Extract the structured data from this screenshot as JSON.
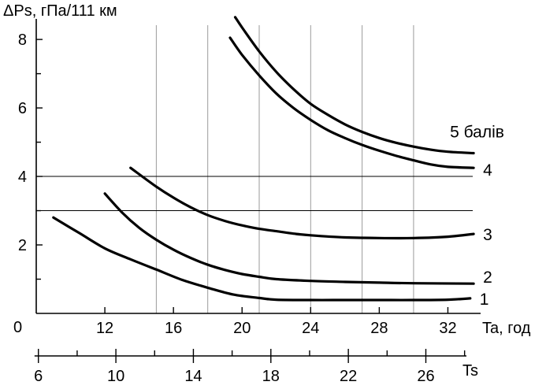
{
  "chart_data": {
    "type": "line",
    "ylabel": "ΔPs, гПа/111 км",
    "xlabel": "Ta, год",
    "x2label": "Ts",
    "origin_label": "0",
    "xlim": [
      8,
      34
    ],
    "ylim": [
      0,
      8.6
    ],
    "x_ticks": [
      12,
      16,
      20,
      24,
      28,
      32
    ],
    "x_minor_ticks": [],
    "y_ticks": [
      2,
      4,
      6,
      8
    ],
    "y_minor_ticks": [
      1,
      3,
      5,
      7
    ],
    "x2_ticks": [
      6,
      10,
      14,
      18,
      22,
      26
    ],
    "x2_minor_ticks": [
      8,
      12,
      16,
      20,
      24,
      28
    ],
    "x2lim": [
      5.8,
      28.2
    ],
    "vertical_grid_x": [
      15,
      18,
      21,
      24,
      27,
      30
    ],
    "horizontal_grid_y": [
      3,
      4
    ],
    "grid": true,
    "series": [
      {
        "name": "1",
        "x": [
          9.0,
          10.5,
          12.0,
          13.5,
          15.0,
          16.5,
          18.0,
          19.5,
          21.0,
          22.0,
          24.0,
          26.0,
          28.0,
          30.0,
          32.0,
          33.3
        ],
        "y": [
          2.8,
          2.35,
          1.9,
          1.58,
          1.28,
          0.98,
          0.75,
          0.55,
          0.45,
          0.4,
          0.39,
          0.39,
          0.39,
          0.39,
          0.4,
          0.44
        ]
      },
      {
        "name": "2",
        "x": [
          12.0,
          13.0,
          14.0,
          15.0,
          16.0,
          17.0,
          18.0,
          19.0,
          20.0,
          21.0,
          22.0,
          24.0,
          26.0,
          28.0,
          30.0,
          33.5
        ],
        "y": [
          3.5,
          2.95,
          2.5,
          2.15,
          1.86,
          1.62,
          1.42,
          1.27,
          1.15,
          1.07,
          1.0,
          0.95,
          0.92,
          0.9,
          0.88,
          0.87
        ]
      },
      {
        "name": "3",
        "x": [
          13.5,
          15.0,
          16.0,
          17.0,
          18.0,
          19.0,
          20.0,
          21.0,
          22.0,
          23.0,
          24.0,
          26.0,
          28.0,
          30.0,
          32.0,
          33.5
        ],
        "y": [
          4.25,
          3.7,
          3.38,
          3.1,
          2.87,
          2.7,
          2.57,
          2.47,
          2.4,
          2.33,
          2.28,
          2.22,
          2.2,
          2.2,
          2.24,
          2.32
        ]
      },
      {
        "name": "4",
        "x": [
          19.3,
          20.0,
          21.0,
          22.0,
          23.0,
          24.0,
          25.0,
          26.0,
          27.0,
          28.0,
          29.0,
          30.0,
          31.0,
          32.0,
          33.5
        ],
        "y": [
          8.05,
          7.55,
          6.95,
          6.42,
          6.0,
          5.65,
          5.35,
          5.12,
          4.92,
          4.75,
          4.6,
          4.47,
          4.35,
          4.28,
          4.25
        ]
      },
      {
        "name": "5 балів",
        "x": [
          19.6,
          20.0,
          21.0,
          22.0,
          23.0,
          24.0,
          25.0,
          26.0,
          27.0,
          28.0,
          29.0,
          30.0,
          31.0,
          32.0,
          33.5
        ],
        "y": [
          8.65,
          8.35,
          7.65,
          7.05,
          6.55,
          6.12,
          5.8,
          5.52,
          5.3,
          5.12,
          4.98,
          4.87,
          4.78,
          4.72,
          4.68
        ]
      }
    ]
  }
}
